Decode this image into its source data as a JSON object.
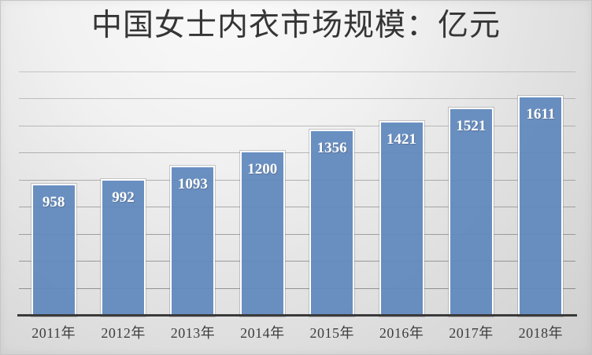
{
  "chart_data": {
    "type": "bar",
    "title": "中国女士内衣市场规模：亿元",
    "unit": "亿元",
    "categories": [
      "2011年",
      "2012年",
      "2013年",
      "2014年",
      "2015年",
      "2016年",
      "2017年",
      "2018年"
    ],
    "values": [
      958,
      992,
      1093,
      1200,
      1356,
      1421,
      1521,
      1611
    ],
    "data_labels": "inside-top",
    "ylim": [
      0,
      1800
    ],
    "gridline_interval": 200,
    "grid": "horizontal-only",
    "y_axis_tick_labels_visible": false,
    "legend_position": "none"
  },
  "colors": {
    "bar_fill": "rgba(97,137,190,0.94)",
    "bar_border": "#ffffff",
    "bar_outline": "rgba(110,110,110,0.32)",
    "axis_line": "#3a3a3a",
    "grid_rgb": "80,80,80",
    "title_text": "#353535",
    "tick_text": "#3e3e3e",
    "value_label_text": "#ffffff"
  }
}
